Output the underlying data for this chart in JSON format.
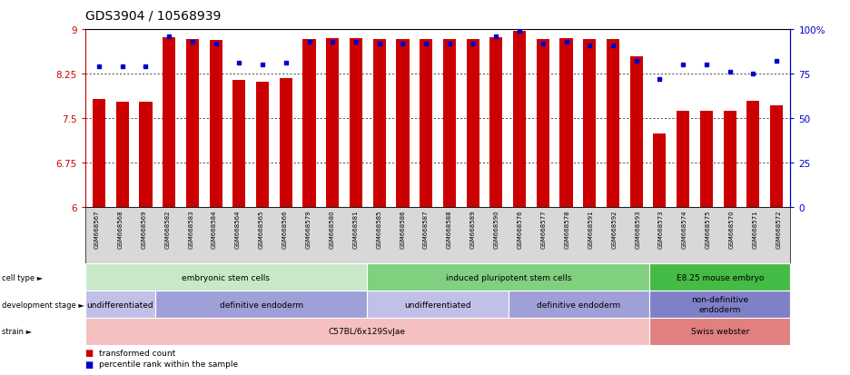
{
  "title": "GDS3904 / 10568939",
  "samples": [
    "GSM668567",
    "GSM668568",
    "GSM668569",
    "GSM668582",
    "GSM668583",
    "GSM668584",
    "GSM668564",
    "GSM668565",
    "GSM668566",
    "GSM668579",
    "GSM668580",
    "GSM668581",
    "GSM668585",
    "GSM668586",
    "GSM668587",
    "GSM668588",
    "GSM668589",
    "GSM668590",
    "GSM668576",
    "GSM668577",
    "GSM668578",
    "GSM668591",
    "GSM668592",
    "GSM668593",
    "GSM668573",
    "GSM668574",
    "GSM668575",
    "GSM668570",
    "GSM668571",
    "GSM668572"
  ],
  "transformed_count": [
    7.82,
    7.78,
    7.78,
    8.87,
    8.83,
    8.82,
    8.15,
    8.12,
    8.18,
    8.83,
    8.85,
    8.85,
    8.83,
    8.83,
    8.83,
    8.83,
    8.83,
    8.87,
    8.97,
    8.83,
    8.85,
    8.83,
    8.83,
    8.55,
    7.25,
    7.62,
    7.62,
    7.62,
    7.8,
    7.72
  ],
  "percentile_rank": [
    79,
    79,
    79,
    96,
    93,
    92,
    81,
    80,
    81,
    93,
    93,
    93,
    92,
    92,
    92,
    92,
    92,
    96,
    99,
    92,
    93,
    91,
    91,
    82,
    72,
    80,
    80,
    76,
    75,
    82
  ],
  "bar_color": "#cc0000",
  "dot_color": "#0000cc",
  "ylim_left": [
    6,
    9
  ],
  "ylim_right": [
    0,
    100
  ],
  "yticks_left": [
    6,
    6.75,
    7.5,
    8.25,
    9
  ],
  "yticks_right": [
    0,
    25,
    50,
    75,
    100
  ],
  "ytick_labels_right": [
    "0",
    "25",
    "50",
    "75",
    "100%"
  ],
  "grid_values": [
    6.75,
    7.5,
    8.25
  ],
  "cell_type_groups": [
    {
      "label": "embryonic stem cells",
      "start": 0,
      "end": 11,
      "color": "#c8e8c8"
    },
    {
      "label": "induced pluripotent stem cells",
      "start": 12,
      "end": 23,
      "color": "#80d080"
    },
    {
      "label": "E8.25 mouse embryo",
      "start": 24,
      "end": 29,
      "color": "#44bb44"
    }
  ],
  "dev_stage_groups": [
    {
      "label": "undifferentiated",
      "start": 0,
      "end": 2,
      "color": "#c0c0e8"
    },
    {
      "label": "definitive endoderm",
      "start": 3,
      "end": 11,
      "color": "#a0a0d8"
    },
    {
      "label": "undifferentiated",
      "start": 12,
      "end": 17,
      "color": "#c0c0e8"
    },
    {
      "label": "definitive endoderm",
      "start": 18,
      "end": 23,
      "color": "#a0a0d8"
    },
    {
      "label": "non-definitive\nendoderm",
      "start": 24,
      "end": 29,
      "color": "#8080c8"
    }
  ],
  "strain_groups": [
    {
      "label": "C57BL/6x129SvJae",
      "start": 0,
      "end": 23,
      "color": "#f4c0c0"
    },
    {
      "label": "Swiss webster",
      "start": 24,
      "end": 29,
      "color": "#e08080"
    }
  ],
  "bar_baseline": 6,
  "xtick_bg_color": "#d8d8d8",
  "row_label_color": "#444444"
}
